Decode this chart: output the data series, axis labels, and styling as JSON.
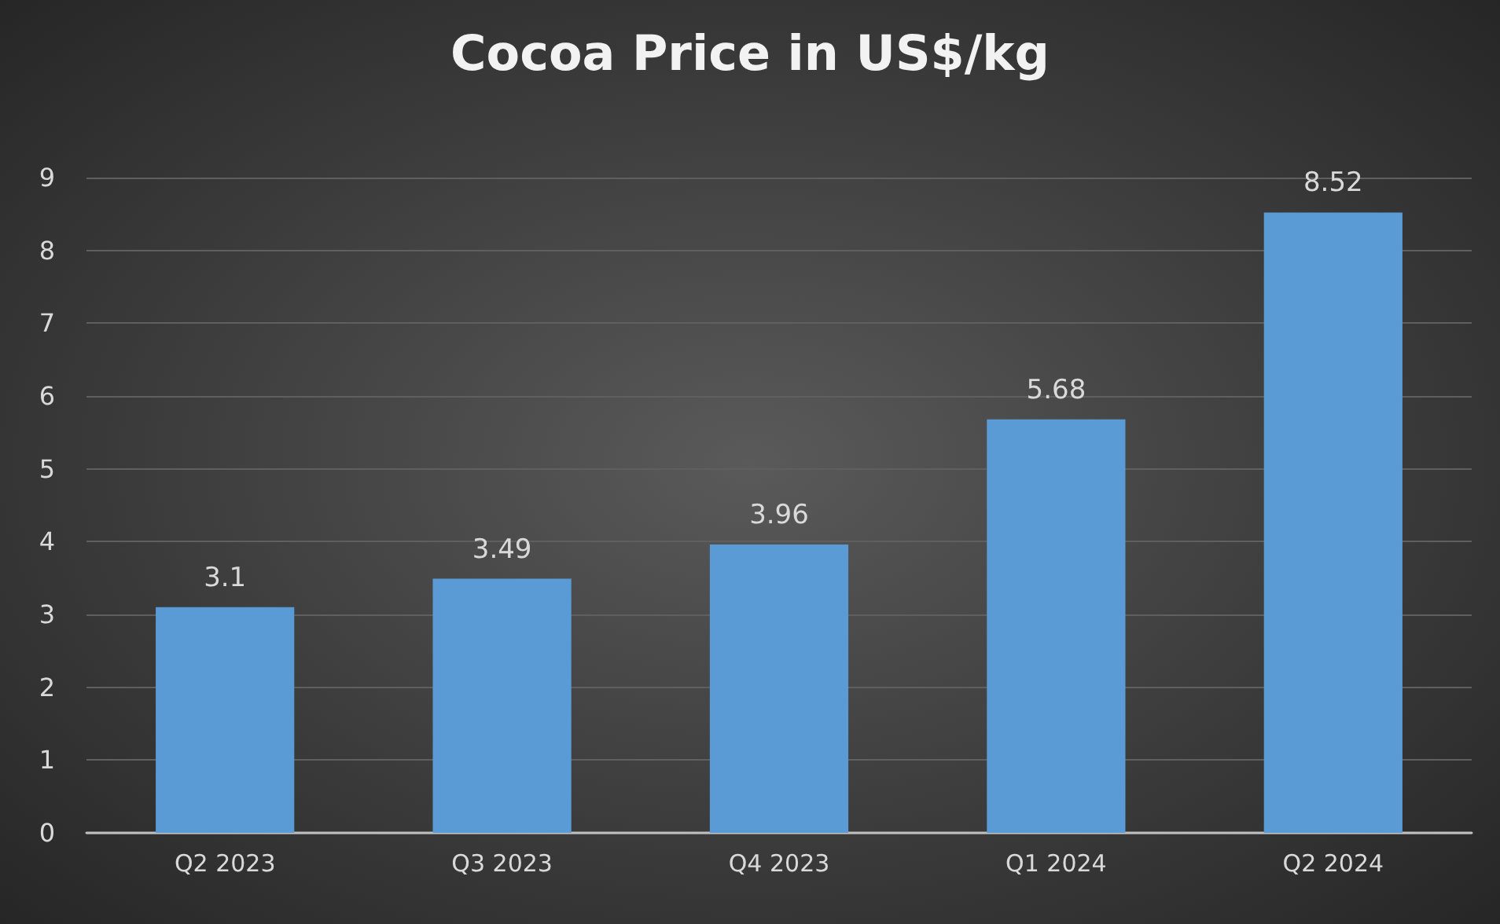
{
  "chart_data": {
    "type": "bar",
    "title": "Cocoa Price in US$/kg",
    "categories": [
      "Q2 2023",
      "Q3 2023",
      "Q4 2023",
      "Q1 2024",
      "Q2 2024"
    ],
    "values": [
      3.1,
      3.49,
      3.96,
      5.68,
      8.52
    ],
    "color": "#5b9bd5",
    "ylim": [
      0,
      9
    ],
    "yticks": [
      0,
      1,
      2,
      3,
      4,
      5,
      6,
      7,
      8,
      9
    ],
    "grid": "y",
    "data_labels": true
  }
}
